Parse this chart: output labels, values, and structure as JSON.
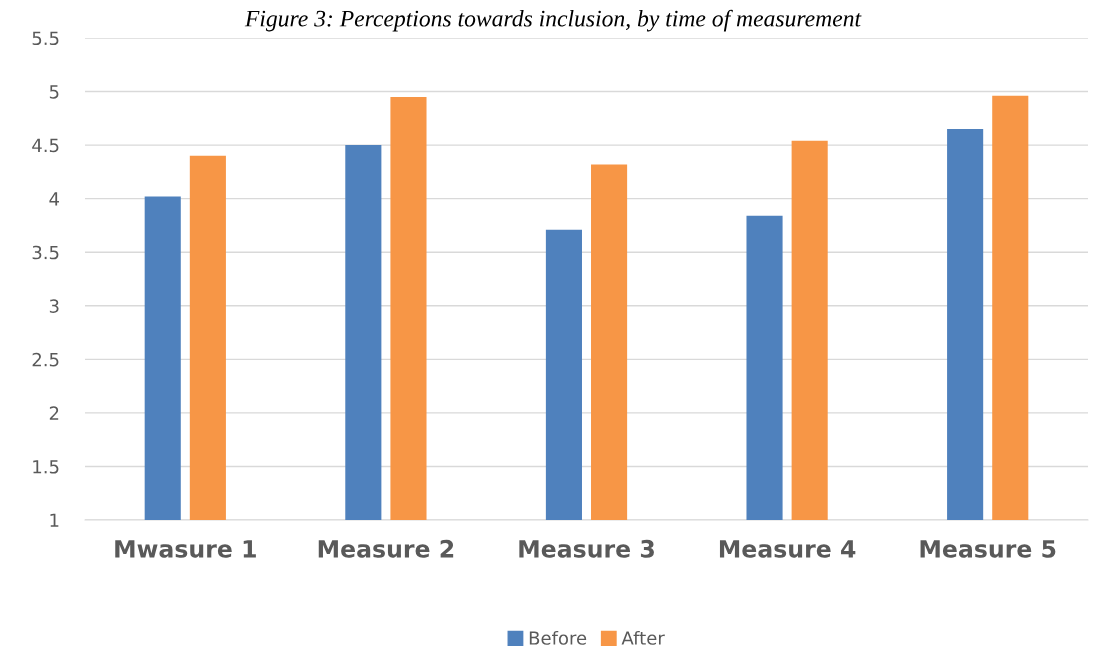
{
  "chart_data": {
    "type": "bar",
    "title": "Figure 3: Perceptions towards inclusion, by time of measurement",
    "categories": [
      "Mwasure 1",
      "Measure 2",
      "Measure 3",
      "Measure 4",
      "Measure 5"
    ],
    "series": [
      {
        "name": "Before",
        "color": "#4f81bd",
        "values": [
          4.02,
          4.5,
          3.71,
          3.84,
          4.65
        ]
      },
      {
        "name": "After",
        "color": "#f79646",
        "values": [
          4.4,
          4.95,
          4.32,
          4.54,
          4.96
        ]
      }
    ],
    "ylim": [
      1,
      5.5
    ],
    "yticks": [
      1,
      1.5,
      2,
      2.5,
      3,
      3.5,
      4,
      4.5,
      5,
      5.5
    ],
    "grid": "y",
    "legend": "bottom"
  }
}
